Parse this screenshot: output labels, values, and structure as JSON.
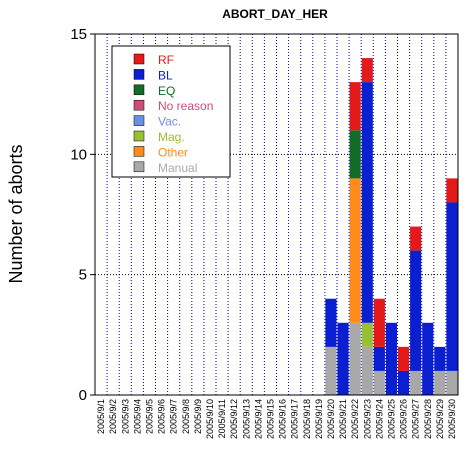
{
  "chart_data": {
    "type": "bar",
    "stacked": true,
    "title": "ABORT_DAY_HER",
    "xlabel": "",
    "ylabel": "Number of aborts",
    "ylim": [
      0,
      15
    ],
    "yticks": [
      0,
      5,
      10,
      15
    ],
    "grid": true,
    "legend_position": "top-left",
    "categories": [
      "2005/9/1",
      "2005/9/2",
      "2005/9/3",
      "2005/9/4",
      "2005/9/5",
      "2005/9/6",
      "2005/9/7",
      "2005/9/8",
      "2005/9/9",
      "2005/9/10",
      "2005/9/11",
      "2005/9/12",
      "2005/9/13",
      "2005/9/14",
      "2005/9/15",
      "2005/9/16",
      "2005/9/17",
      "2005/9/18",
      "2005/9/19",
      "2005/9/20",
      "2005/9/21",
      "2005/9/22",
      "2005/9/23",
      "2005/9/24",
      "2005/9/25",
      "2005/9/26",
      "2005/9/27",
      "2005/9/28",
      "2005/9/29",
      "2005/9/30"
    ],
    "series": [
      {
        "name": "Manual",
        "color": "#a8a8a8",
        "values": [
          0,
          0,
          0,
          0,
          0,
          0,
          0,
          0,
          0,
          0,
          0,
          0,
          0,
          0,
          0,
          0,
          0,
          0,
          0,
          2,
          0,
          3,
          2,
          1,
          0,
          0,
          1,
          0,
          1,
          1
        ]
      },
      {
        "name": "Other",
        "color": "#ff8c1a",
        "values": [
          0,
          0,
          0,
          0,
          0,
          0,
          0,
          0,
          0,
          0,
          0,
          0,
          0,
          0,
          0,
          0,
          0,
          0,
          0,
          0,
          0,
          6,
          0,
          0,
          0,
          0,
          0,
          0,
          0,
          0
        ]
      },
      {
        "name": "Mag.",
        "color": "#99c033",
        "values": [
          0,
          0,
          0,
          0,
          0,
          0,
          0,
          0,
          0,
          0,
          0,
          0,
          0,
          0,
          0,
          0,
          0,
          0,
          0,
          0,
          0,
          0,
          1,
          0,
          0,
          0,
          0,
          0,
          0,
          0
        ]
      },
      {
        "name": "Vac.",
        "color": "#6a8fe6",
        "values": [
          0,
          0,
          0,
          0,
          0,
          0,
          0,
          0,
          0,
          0,
          0,
          0,
          0,
          0,
          0,
          0,
          0,
          0,
          0,
          0,
          0,
          0,
          0,
          0,
          0,
          0,
          0,
          0,
          0,
          0
        ]
      },
      {
        "name": "No reason",
        "color": "#d04a7a",
        "values": [
          0,
          0,
          0,
          0,
          0,
          0,
          0,
          0,
          0,
          0,
          0,
          0,
          0,
          0,
          0,
          0,
          0,
          0,
          0,
          0,
          0,
          0,
          0,
          0,
          0,
          0,
          0,
          0,
          0,
          0
        ]
      },
      {
        "name": "EQ",
        "color": "#126b26",
        "values": [
          0,
          0,
          0,
          0,
          0,
          0,
          0,
          0,
          0,
          0,
          0,
          0,
          0,
          0,
          0,
          0,
          0,
          0,
          0,
          0,
          0,
          2,
          0,
          0,
          0,
          0,
          0,
          0,
          0,
          0
        ]
      },
      {
        "name": "BL",
        "color": "#0a1fd0",
        "values": [
          0,
          0,
          0,
          0,
          0,
          0,
          0,
          0,
          0,
          0,
          0,
          0,
          0,
          0,
          0,
          0,
          0,
          0,
          0,
          2,
          3,
          0,
          10,
          1,
          3,
          1,
          5,
          3,
          1,
          7
        ]
      },
      {
        "name": "RF",
        "color": "#e41a1a",
        "values": [
          0,
          0,
          0,
          0,
          0,
          0,
          0,
          0,
          0,
          0,
          0,
          0,
          0,
          0,
          0,
          0,
          0,
          0,
          0,
          0,
          0,
          2,
          1,
          2,
          0,
          1,
          1,
          0,
          0,
          1
        ]
      }
    ],
    "legend_order": [
      "RF",
      "BL",
      "EQ",
      "No reason",
      "Vac.",
      "Mag.",
      "Other",
      "Manual"
    ]
  }
}
